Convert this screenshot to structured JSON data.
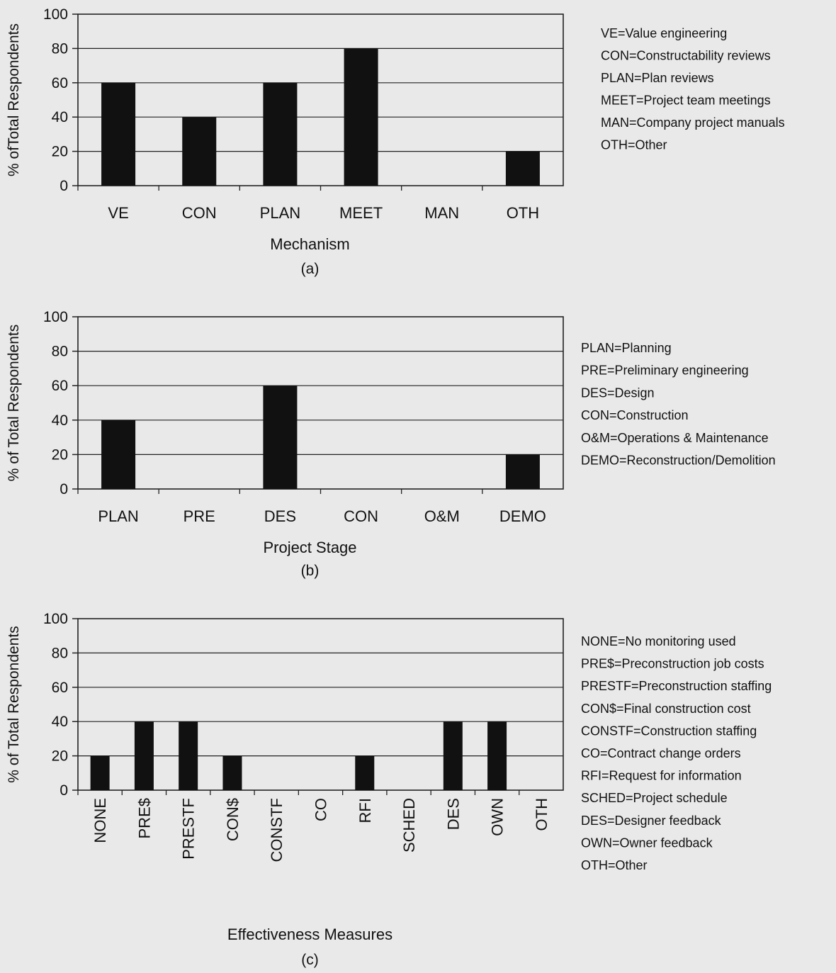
{
  "chart_data": [
    {
      "type": "bar",
      "panel_label": "(a)",
      "categories": [
        "VE",
        "CON",
        "PLAN",
        "MEET",
        "MAN",
        "OTH"
      ],
      "values": [
        60,
        40,
        60,
        80,
        0,
        20
      ],
      "xlabel": "Mechanism",
      "ylabel": "% ofTotal Respondents",
      "ylim": [
        0,
        100
      ],
      "yticks": [
        "0",
        "20",
        "40",
        "60",
        "80",
        "100"
      ],
      "grid": true,
      "legend_position": "right",
      "legend": [
        "VE=Value engineering",
        "CON=Constructability reviews",
        "PLAN=Plan reviews",
        "MEET=Project team meetings",
        "MAN=Company project manuals",
        "OTH=Other"
      ]
    },
    {
      "type": "bar",
      "panel_label": "(b)",
      "categories": [
        "PLAN",
        "PRE",
        "DES",
        "CON",
        "O&M",
        "DEMO"
      ],
      "values": [
        40,
        0,
        60,
        0,
        0,
        20
      ],
      "xlabel": "Project Stage",
      "ylabel": "% of Total Respondents",
      "ylim": [
        0,
        100
      ],
      "yticks": [
        "0",
        "20",
        "40",
        "60",
        "80",
        "100"
      ],
      "grid": true,
      "legend_position": "right",
      "legend": [
        "PLAN=Planning",
        "PRE=Preliminary engineering",
        "DES=Design",
        "CON=Construction",
        "O&M=Operations & Maintenance",
        "DEMO=Reconstruction/Demolition"
      ]
    },
    {
      "type": "bar",
      "panel_label": "(c)",
      "categories": [
        "NONE",
        "PRE$",
        "PRESTF",
        "CON$",
        "CONSTF",
        "CO",
        "RFI",
        "SCHED",
        "DES",
        "OWN",
        "OTH"
      ],
      "values": [
        20,
        40,
        40,
        20,
        0,
        0,
        20,
        0,
        40,
        40,
        0
      ],
      "xlabel": "Effectiveness Measures",
      "ylabel": "% of Total Respondents",
      "ylim": [
        0,
        100
      ],
      "yticks": [
        "0",
        "20",
        "40",
        "60",
        "80",
        "100"
      ],
      "grid": true,
      "rotated_category_labels": true,
      "legend_position": "right",
      "legend": [
        "NONE=No monitoring used",
        "PRE$=Preconstruction job costs",
        "PRESTF=Preconstruction staffing",
        "CON$=Final construction cost",
        "CONSTF=Construction staffing",
        "CO=Contract change orders",
        "RFI=Request for information",
        "SCHED=Project schedule",
        "DES=Designer feedback",
        "OWN=Owner feedback",
        "OTH=Other"
      ]
    }
  ],
  "colors": {
    "background": "#e9e9e9",
    "bar": "#111111",
    "grid": "#222222",
    "axis": "#222222",
    "text": "#111111"
  }
}
